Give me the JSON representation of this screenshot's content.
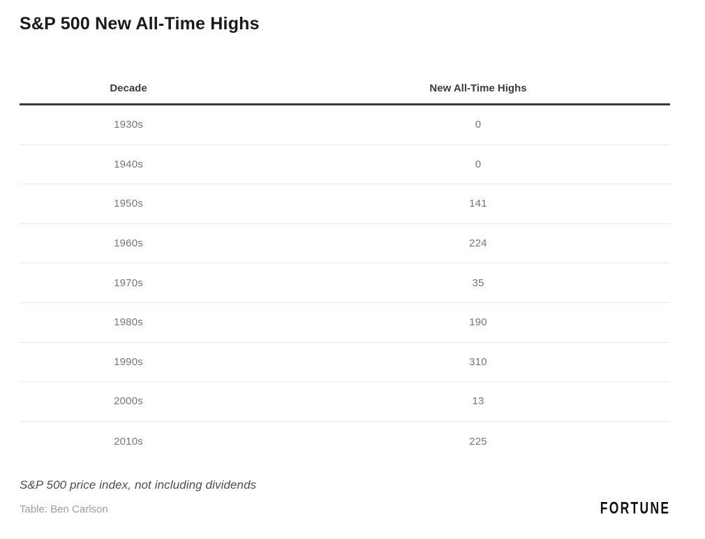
{
  "title": "S&P 500 New All-Time Highs",
  "table": {
    "columns": [
      "Decade",
      "New All-Time Highs"
    ],
    "rows": [
      [
        "1930s",
        "0"
      ],
      [
        "1940s",
        "0"
      ],
      [
        "1950s",
        "141"
      ],
      [
        "1960s",
        "224"
      ],
      [
        "1970s",
        "35"
      ],
      [
        "1980s",
        "190"
      ],
      [
        "1990s",
        "310"
      ],
      [
        "2000s",
        "13"
      ],
      [
        "2010s",
        "225"
      ]
    ]
  },
  "footer": {
    "note": "S&P 500 price index, not including dividends",
    "credit": "Table: Ben Carlson",
    "brand": "FORTUNE"
  },
  "colors": {
    "title_text": "#1a1a1a",
    "header_text": "#3c3c3c",
    "header_border": "#3b3b3b",
    "row_text": "#757575",
    "row_divider": "#e8e8e8",
    "note_text": "#4d4d4d",
    "credit_text": "#9d9d9d",
    "brand_text": "#111111",
    "background": "#ffffff"
  },
  "chart_data": {
    "type": "table",
    "title": "S&P 500 New All-Time Highs",
    "columns": [
      "Decade",
      "New All-Time Highs"
    ],
    "categories": [
      "1930s",
      "1940s",
      "1950s",
      "1960s",
      "1970s",
      "1980s",
      "1990s",
      "2000s",
      "2010s"
    ],
    "values": [
      0,
      0,
      141,
      224,
      35,
      190,
      310,
      13,
      225
    ],
    "note": "S&P 500 price index, not including dividends",
    "credit": "Table: Ben Carlson",
    "source_brand": "FORTUNE"
  }
}
